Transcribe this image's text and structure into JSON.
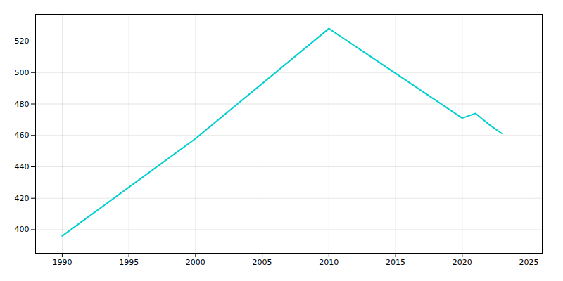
{
  "chart_data": {
    "type": "line",
    "x": [
      1990,
      2000,
      2010,
      2020,
      2021,
      2022,
      2023
    ],
    "values": [
      396,
      458,
      528,
      471,
      474,
      467,
      461
    ],
    "color": "#00CED1",
    "xlim": [
      1988,
      2026
    ],
    "ylim": [
      385,
      537
    ],
    "xticks": [
      1990,
      1995,
      2000,
      2005,
      2010,
      2015,
      2020,
      2025
    ],
    "yticks": [
      400,
      420,
      440,
      460,
      480,
      500,
      520
    ],
    "grid": true
  }
}
